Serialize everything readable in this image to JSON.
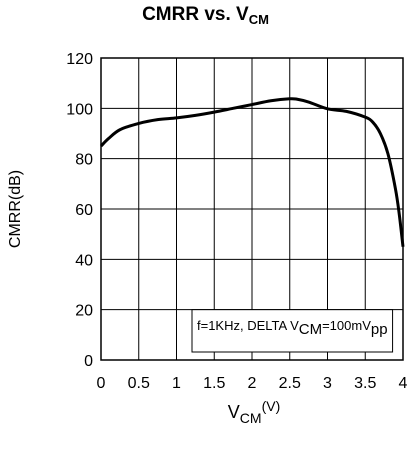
{
  "chart_data": {
    "type": "line",
    "title": {
      "main": "CMRR vs. V",
      "sub": "CM"
    },
    "xlabel": {
      "main": "V",
      "sub": "CM",
      "unit": "(V)"
    },
    "ylabel": "CMRR(dB)",
    "xlim": [
      0,
      4
    ],
    "ylim": [
      0,
      120
    ],
    "xticks": [
      "0",
      "0.5",
      "1",
      "1.5",
      "2",
      "2.5",
      "3",
      "3.5",
      "4"
    ],
    "yticks": [
      "0",
      "20",
      "40",
      "60",
      "80",
      "100",
      "120"
    ],
    "grid": true,
    "annotation": {
      "prefix": "f=1KHz, DELTA V",
      "sub1": "CM",
      "mid": "=100mV",
      "sub2": "pp"
    },
    "series": [
      {
        "x": [
          0,
          0.1,
          0.25,
          0.5,
          0.75,
          1.0,
          1.25,
          1.5,
          1.75,
          2.0,
          2.25,
          2.5,
          2.6,
          2.75,
          3.0,
          3.25,
          3.5,
          3.6,
          3.7,
          3.8,
          3.9,
          3.95,
          4.0
        ],
        "y": [
          85,
          88,
          91.5,
          94,
          95.5,
          96.2,
          97.2,
          98.5,
          100,
          101.5,
          103,
          103.8,
          103.6,
          102.5,
          99.8,
          98.8,
          96.5,
          94.5,
          90,
          82,
          68,
          58,
          45
        ]
      }
    ]
  }
}
